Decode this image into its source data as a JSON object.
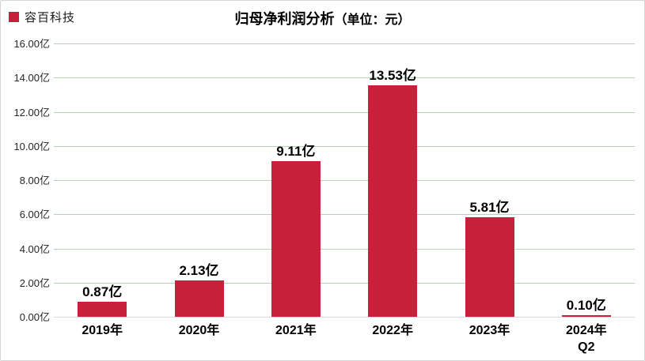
{
  "legend": {
    "label": "容百科技",
    "swatch_color": "#c7203b"
  },
  "title": {
    "main": "归母净利润分析",
    "unit": "（单位：元）"
  },
  "chart_data": {
    "type": "bar",
    "title": "归母净利润分析（单位：元）",
    "series_name": "容百科技",
    "categories": [
      "2019年",
      "2020年",
      "2021年",
      "2022年",
      "2023年",
      "2024年\nQ2"
    ],
    "values": [
      0.87,
      2.13,
      9.11,
      13.53,
      5.81,
      0.1
    ],
    "value_labels": [
      "0.87亿",
      "2.13亿",
      "9.11亿",
      "13.53亿",
      "5.81亿",
      "0.10亿"
    ],
    "y_tick_labels": [
      "0.00亿",
      "2.00亿",
      "4.00亿",
      "6.00亿",
      "8.00亿",
      "10.00亿",
      "12.00亿",
      "14.00亿",
      "16.00亿"
    ],
    "ylim": [
      0,
      16
    ],
    "y_step": 2,
    "grid": true,
    "legend_position": "top-left",
    "bar_color": "#c7203b",
    "grid_color": "#b2d6b4",
    "axis_line_color": "#d9d9d9",
    "label_color": "#000000"
  }
}
